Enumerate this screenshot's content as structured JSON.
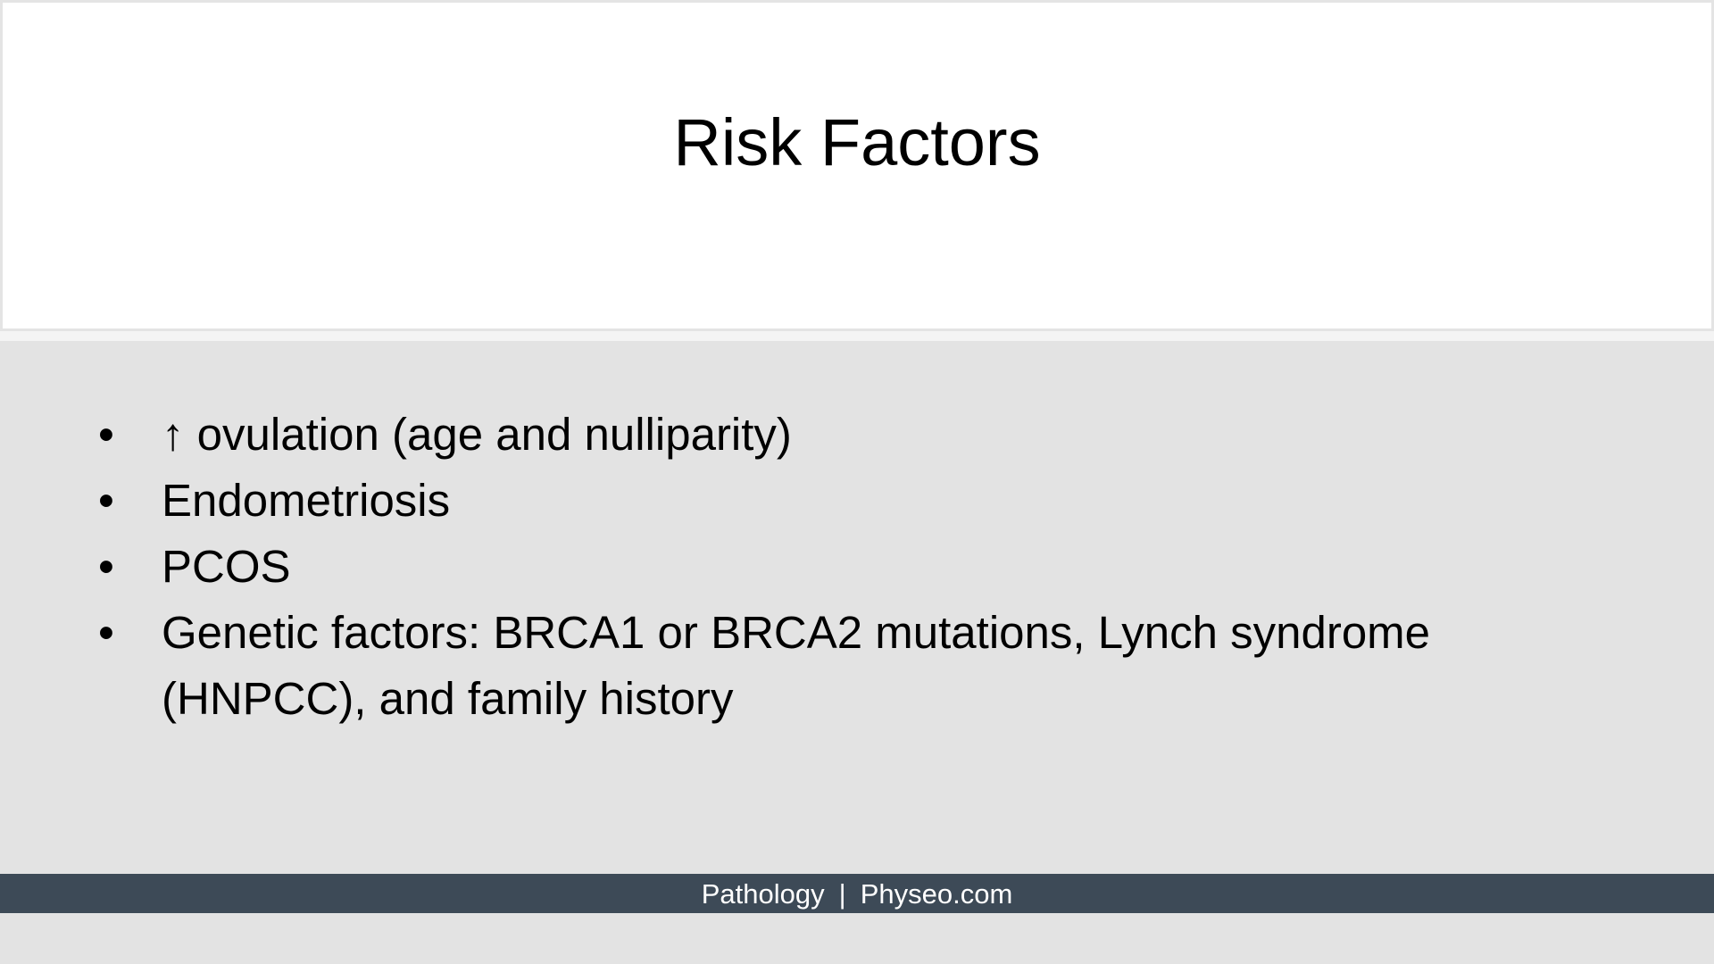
{
  "slide": {
    "title": "Risk Factors",
    "bullet_symbol": "•",
    "bullets": [
      "↑ ovulation (age and nulliparity)",
      "Endometriosis",
      "PCOS",
      "Genetic factors: BRCA1 or BRCA2 mutations, Lynch syndrome (HNPCC), and family history"
    ]
  },
  "footer": {
    "left": "Pathology",
    "separator": "|",
    "right": "Physeo.com"
  },
  "colors": {
    "background": "#e3e3e3",
    "title_panel": "#ffffff",
    "footer_bar": "#3d4a57",
    "footer_text": "#ffffff"
  }
}
